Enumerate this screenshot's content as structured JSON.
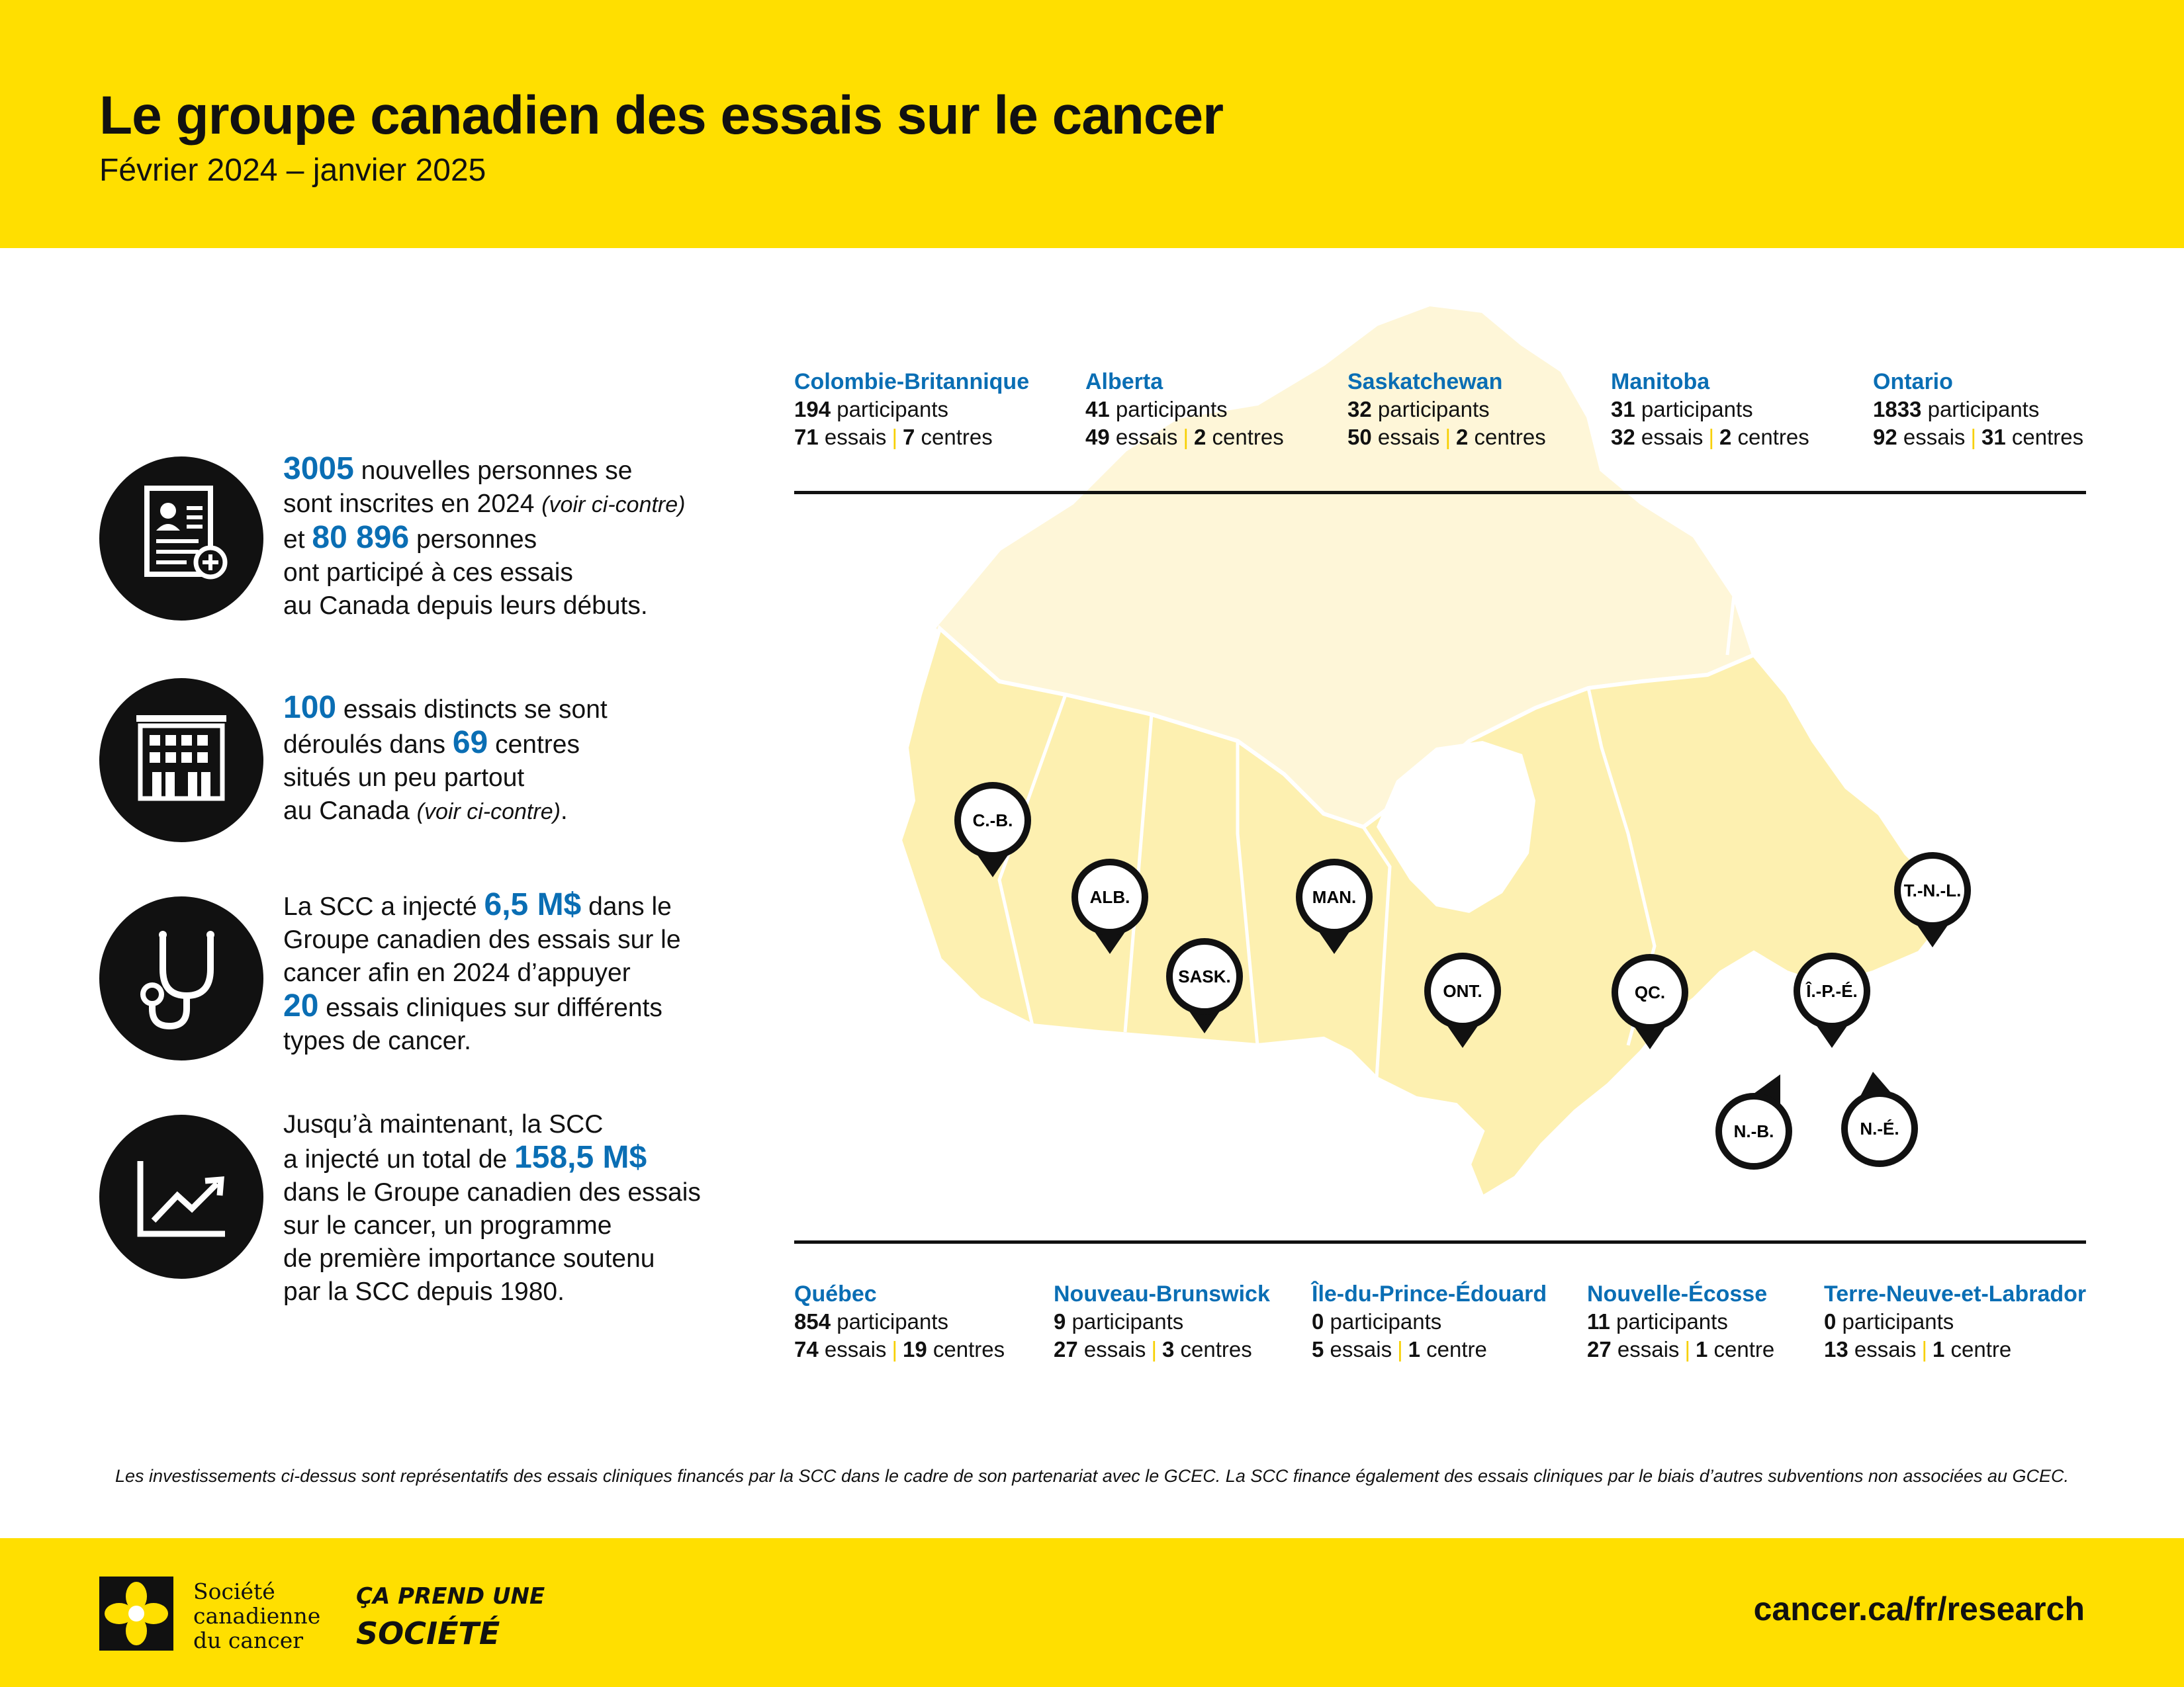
{
  "header": {
    "title": "Le groupe canadien des essais sur le cancer",
    "subtitle": "Février 2024 – janvier 2025"
  },
  "stats": [
    {
      "icon": "patient-record-icon",
      "value1": "3005",
      "t1": " nouvelles personnes se",
      "t2": "sont inscrites en 2024 ",
      "t2_italic": "(voir ci-contre)",
      "t3a": "et ",
      "value2": "80 896",
      "t3b": " personnes",
      "t4": "ont participé à ces essais",
      "t5": "au Canada depuis leurs débuts."
    },
    {
      "icon": "building-icon",
      "value1": "100",
      "t1": " essais distincts se sont",
      "t2a": "déroulés dans ",
      "value2": "69",
      "t2b": " centres",
      "t3": "situés un peu partout",
      "t4": "au Canada ",
      "t4_italic": "(voir ci-contre)",
      "t4_end": "."
    },
    {
      "icon": "stethoscope-icon",
      "t1a": "La SCC a injecté ",
      "value1": "6,5 M$",
      "t1b": " dans le",
      "t2": "Groupe canadien des essais sur le",
      "t3": "cancer afin en 2024 d’appuyer",
      "value2": "20",
      "t4": " essais cliniques sur différents",
      "t5": "types de cancer."
    },
    {
      "icon": "growth-chart-icon",
      "t1": "Jusqu’à maintenant, la SCC",
      "t2a": "a injecté un total de ",
      "value1": "158,5 M$",
      "t3": "dans le Groupe canadien des essais",
      "t4": "sur le cancer, un programme",
      "t5": "de première importance soutenu",
      "t6": "par la SCC depuis 1980."
    }
  ],
  "labels": {
    "participants": " participants",
    "essais": " essais",
    "centres": " centres",
    "centre": " centre",
    "separator": "|"
  },
  "provinces_top": [
    {
      "name": "Colombie-Britannique",
      "participants": "194",
      "essais": "71",
      "centres": "7",
      "centre_label": " centres"
    },
    {
      "name": "Alberta",
      "participants": "41",
      "essais": "49",
      "centres": "2",
      "centre_label": " centres"
    },
    {
      "name": "Saskatchewan",
      "participants": "32",
      "essais": "50",
      "centres": "2",
      "centre_label": " centres"
    },
    {
      "name": "Manitoba",
      "participants": "31",
      "essais": "32",
      "centres": "2",
      "centre_label": " centres"
    },
    {
      "name": "Ontario",
      "participants": "1833",
      "essais": "92",
      "centres": "31",
      "centre_label": " centres"
    }
  ],
  "provinces_bottom": [
    {
      "name": "Québec",
      "participants": "854",
      "essais": "74",
      "centres": "19",
      "centre_label": " centres"
    },
    {
      "name": "Nouveau-Brunswick",
      "participants": "9",
      "essais": "27",
      "centres": "3",
      "centre_label": " centres"
    },
    {
      "name": "Île-du-Prince-Édouard",
      "participants": "0",
      "essais": "5",
      "centres": "1",
      "centre_label": " centre"
    },
    {
      "name": "Nouvelle-Écosse",
      "participants": "11",
      "essais": "27",
      "centres": "1",
      "centre_label": " centre"
    },
    {
      "name": "Terre-Neuve-et-Labrador",
      "participants": "0",
      "essais": "13",
      "centres": "1",
      "centre_label": " centre"
    }
  ],
  "map_pins": [
    "C.-B.",
    "ALB.",
    "SASK.",
    "MAN.",
    "ONT.",
    "QC.",
    "Î.-P.-É.",
    "T.-N.-L.",
    "N.-B.",
    "N.-É."
  ],
  "note": "Les investissements ci-dessus sont représentatifs des essais cliniques financés par la SCC dans le cadre de son partenariat avec le GCEC. La SCC finance également des essais cliniques par le biais d’autres subventions non associées au GCEC.",
  "footer": {
    "logo_line1": "Société",
    "logo_line2": "canadienne",
    "logo_line3": "du cancer",
    "tagline1": "ÇA PREND UNE",
    "tagline2": "SOCIÉTÉ",
    "url": "cancer.ca/fr/research"
  },
  "colors": {
    "brand_yellow": "#FFDF00",
    "accent_blue": "#0A6EB4",
    "map_fill": "#FDF0B0",
    "map_fill_north": "#FEF6D8",
    "text": "#111111"
  }
}
